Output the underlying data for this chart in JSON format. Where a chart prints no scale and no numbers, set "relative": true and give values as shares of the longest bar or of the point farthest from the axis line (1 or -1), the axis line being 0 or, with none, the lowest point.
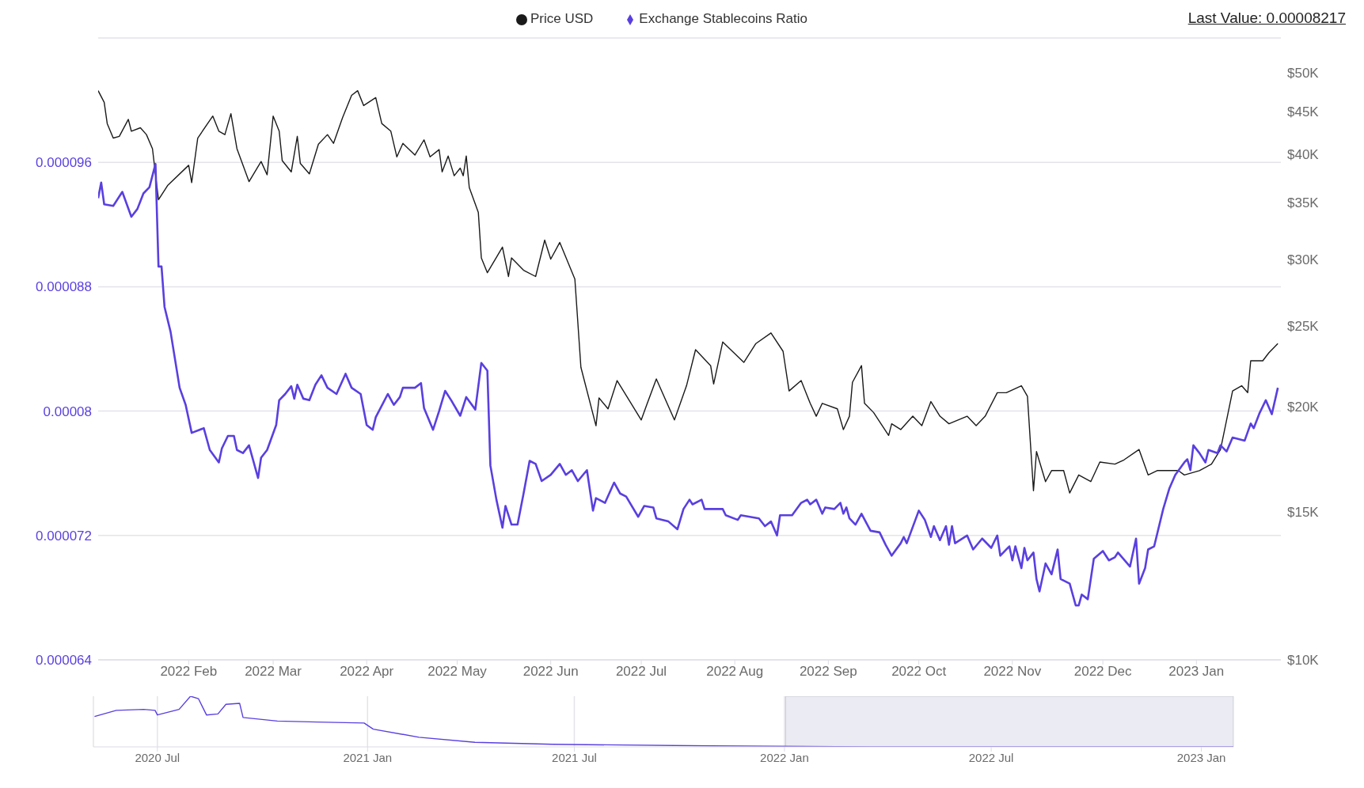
{
  "chart_data": [
    {
      "type": "line",
      "legend": "top",
      "grid": "y",
      "log": "y2",
      "annotations": [
        "Last Value: 0.00008217"
      ],
      "xlim": [
        "2022-01-02",
        "2023-01-29"
      ],
      "xticks": [
        {
          "value": "2022-02-01",
          "label": "2022 Feb"
        },
        {
          "value": "2022-03-01",
          "label": "2022 Mar"
        },
        {
          "value": "2022-04-01",
          "label": "2022 Apr"
        },
        {
          "value": "2022-05-01",
          "label": "2022 May"
        },
        {
          "value": "2022-06-01",
          "label": "2022 Jun"
        },
        {
          "value": "2022-07-01",
          "label": "2022 Jul"
        },
        {
          "value": "2022-08-01",
          "label": "2022 Aug"
        },
        {
          "value": "2022-09-01",
          "label": "2022 Sep"
        },
        {
          "value": "2022-10-01",
          "label": "2022 Oct"
        },
        {
          "value": "2022-11-01",
          "label": "2022 Nov"
        },
        {
          "value": "2022-12-01",
          "label": "2022 Dec"
        },
        {
          "value": "2023-01-01",
          "label": "2023 Jan"
        }
      ],
      "ylim": [
        6.4e-05,
        0.000104
      ],
      "yticks": [
        {
          "value": 6.4e-05,
          "label": "0.000064"
        },
        {
          "value": 7.2e-05,
          "label": "0.000072"
        },
        {
          "value": 8e-05,
          "label": "0.00008"
        },
        {
          "value": 8.8e-05,
          "label": "0.000088"
        },
        {
          "value": 9.6e-05,
          "label": "0.000096"
        }
      ],
      "y2lim": [
        10000,
        55000
      ],
      "y2ticks": [
        {
          "value": 10000,
          "label": "$10K"
        },
        {
          "value": 15000,
          "label": "$15K"
        },
        {
          "value": 20000,
          "label": "$20K"
        },
        {
          "value": 25000,
          "label": "$25K"
        },
        {
          "value": 30000,
          "label": "$30K"
        },
        {
          "value": 35000,
          "label": "$35K"
        },
        {
          "value": 40000,
          "label": "$40K"
        },
        {
          "value": 45000,
          "label": "$45K"
        },
        {
          "value": 50000,
          "label": "$50K"
        }
      ],
      "series": [
        {
          "name": "Price USD",
          "color": "#1a1a1a",
          "axis": "y2",
          "x": [
            "2022-01-02",
            "2022-01-04",
            "2022-01-05",
            "2022-01-07",
            "2022-01-09",
            "2022-01-12",
            "2022-01-13",
            "2022-01-16",
            "2022-01-18",
            "2022-01-20",
            "2022-01-22",
            "2022-01-25",
            "2022-02-01",
            "2022-02-02",
            "2022-02-04",
            "2022-02-09",
            "2022-02-11",
            "2022-02-13",
            "2022-02-15",
            "2022-02-17",
            "2022-02-21",
            "2022-02-25",
            "2022-02-27",
            "2022-03-01",
            "2022-03-03",
            "2022-03-04",
            "2022-03-07",
            "2022-03-09",
            "2022-03-10",
            "2022-03-13",
            "2022-03-16",
            "2022-03-19",
            "2022-03-21",
            "2022-03-24",
            "2022-03-27",
            "2022-03-29",
            "2022-03-31",
            "2022-04-04",
            "2022-04-06",
            "2022-04-09",
            "2022-04-11",
            "2022-04-13",
            "2022-04-17",
            "2022-04-20",
            "2022-04-22",
            "2022-04-25",
            "2022-04-26",
            "2022-04-28",
            "2022-04-30",
            "2022-05-02",
            "2022-05-03",
            "2022-05-04",
            "2022-05-05",
            "2022-05-08",
            "2022-05-09",
            "2022-05-11",
            "2022-05-16",
            "2022-05-18",
            "2022-05-19",
            "2022-05-23",
            "2022-05-27",
            "2022-05-30",
            "2022-06-01",
            "2022-06-04",
            "2022-06-09",
            "2022-06-11",
            "2022-06-16",
            "2022-06-17",
            "2022-06-20",
            "2022-06-23",
            "2022-07-01",
            "2022-07-03",
            "2022-07-06",
            "2022-07-12",
            "2022-07-16",
            "2022-07-19",
            "2022-07-24",
            "2022-07-25",
            "2022-07-28",
            "2022-08-04",
            "2022-08-08",
            "2022-08-13",
            "2022-08-17",
            "2022-08-19",
            "2022-08-23",
            "2022-08-26",
            "2022-08-28",
            "2022-08-30",
            "2022-09-04",
            "2022-09-06",
            "2022-09-08",
            "2022-09-09",
            "2022-09-12",
            "2022-09-13",
            "2022-09-16",
            "2022-09-21",
            "2022-09-22",
            "2022-09-25",
            "2022-09-29",
            "2022-10-02",
            "2022-10-05",
            "2022-10-08",
            "2022-10-11",
            "2022-10-17",
            "2022-10-20",
            "2022-10-23",
            "2022-10-27",
            "2022-10-30",
            "2022-11-04",
            "2022-11-06",
            "2022-11-08",
            "2022-11-09",
            "2022-11-12",
            "2022-11-14",
            "2022-11-18",
            "2022-11-20",
            "2022-11-23",
            "2022-11-27",
            "2022-11-30",
            "2022-12-05",
            "2022-12-08",
            "2022-12-13",
            "2022-12-16",
            "2022-12-19",
            "2022-12-26",
            "2022-12-28",
            "2023-01-02",
            "2023-01-06",
            "2023-01-09",
            "2023-01-13",
            "2023-01-16",
            "2023-01-18",
            "2023-01-19",
            "2023-01-23",
            "2023-01-25",
            "2023-01-28"
          ],
          "values": [
            47600,
            46100,
            43500,
            41800,
            42000,
            44000,
            42600,
            43000,
            42200,
            40600,
            35300,
            36700,
            38800,
            37000,
            41800,
            44400,
            42600,
            42200,
            44700,
            40600,
            37100,
            39200,
            37800,
            44400,
            42600,
            39300,
            38100,
            42000,
            39000,
            37900,
            41100,
            42200,
            41200,
            44200,
            47000,
            47600,
            45700,
            46700,
            43500,
            42600,
            39700,
            41200,
            39900,
            41600,
            39700,
            40500,
            38100,
            39800,
            37700,
            38500,
            37700,
            39800,
            36500,
            34100,
            30100,
            28900,
            31000,
            28600,
            30100,
            29100,
            28600,
            31600,
            30000,
            31400,
            28400,
            22300,
            19000,
            20500,
            19900,
            21500,
            19300,
            20200,
            21600,
            19300,
            21200,
            23400,
            22400,
            21300,
            23900,
            22600,
            23800,
            24500,
            23300,
            20900,
            21500,
            20200,
            19500,
            20200,
            19900,
            18800,
            19500,
            21400,
            22400,
            20200,
            19700,
            18500,
            19100,
            18800,
            19500,
            19000,
            20300,
            19500,
            19100,
            19500,
            19000,
            19500,
            20800,
            20800,
            21200,
            20600,
            15900,
            17700,
            16300,
            16800,
            16800,
            15800,
            16600,
            16300,
            17200,
            17100,
            17300,
            17800,
            16600,
            16800,
            16800,
            16600,
            16800,
            17100,
            17800,
            20900,
            21200,
            20800,
            22700,
            22700,
            23200,
            23800
          ]
        },
        {
          "name": "Exchange Stablecoins Ratio",
          "color": "#5a3fe0",
          "axis": "y",
          "x": [
            "2022-01-02",
            "2022-01-03",
            "2022-01-04",
            "2022-01-07",
            "2022-01-10",
            "2022-01-13",
            "2022-01-15",
            "2022-01-17",
            "2022-01-19",
            "2022-01-21",
            "2022-01-22",
            "2022-01-23",
            "2022-01-24",
            "2022-01-26",
            "2022-01-29",
            "2022-01-31",
            "2022-02-02",
            "2022-02-06",
            "2022-02-08",
            "2022-02-11",
            "2022-02-12",
            "2022-02-14",
            "2022-02-16",
            "2022-02-17",
            "2022-02-19",
            "2022-02-21",
            "2022-02-24",
            "2022-02-25",
            "2022-02-27",
            "2022-03-02",
            "2022-03-03",
            "2022-03-05",
            "2022-03-07",
            "2022-03-08",
            "2022-03-09",
            "2022-03-11",
            "2022-03-13",
            "2022-03-15",
            "2022-03-17",
            "2022-03-19",
            "2022-03-22",
            "2022-03-25",
            "2022-03-27",
            "2022-03-30",
            "2022-04-01",
            "2022-04-03",
            "2022-04-04",
            "2022-04-08",
            "2022-04-10",
            "2022-04-12",
            "2022-04-13",
            "2022-04-17",
            "2022-04-19",
            "2022-04-20",
            "2022-04-23",
            "2022-04-25",
            "2022-04-27",
            "2022-04-29",
            "2022-05-02",
            "2022-05-04",
            "2022-05-07",
            "2022-05-09",
            "2022-05-11",
            "2022-05-12",
            "2022-05-14",
            "2022-05-16",
            "2022-05-17",
            "2022-05-19",
            "2022-05-21",
            "2022-05-23",
            "2022-05-25",
            "2022-05-27",
            "2022-05-29",
            "2022-06-01",
            "2022-06-04",
            "2022-06-06",
            "2022-06-08",
            "2022-06-10",
            "2022-06-13",
            "2022-06-15",
            "2022-06-16",
            "2022-06-19",
            "2022-06-22",
            "2022-06-24",
            "2022-06-26",
            "2022-06-30",
            "2022-07-02",
            "2022-07-05",
            "2022-07-06",
            "2022-07-10",
            "2022-07-13",
            "2022-07-15",
            "2022-07-17",
            "2022-07-18",
            "2022-07-21",
            "2022-07-22",
            "2022-07-28",
            "2022-07-29",
            "2022-08-02",
            "2022-08-03",
            "2022-08-09",
            "2022-08-11",
            "2022-08-13",
            "2022-08-15",
            "2022-08-16",
            "2022-08-20",
            "2022-08-23",
            "2022-08-25",
            "2022-08-26",
            "2022-08-28",
            "2022-08-30",
            "2022-08-31",
            "2022-09-03",
            "2022-09-05",
            "2022-09-06",
            "2022-09-07",
            "2022-09-08",
            "2022-09-10",
            "2022-09-12",
            "2022-09-15",
            "2022-09-18",
            "2022-09-20",
            "2022-09-22",
            "2022-09-25",
            "2022-09-26",
            "2022-09-27",
            "2022-10-01",
            "2022-10-03",
            "2022-10-05",
            "2022-10-06",
            "2022-10-08",
            "2022-10-10",
            "2022-10-11",
            "2022-10-12",
            "2022-10-13",
            "2022-10-17",
            "2022-10-19",
            "2022-10-22",
            "2022-10-25",
            "2022-10-27",
            "2022-10-28",
            "2022-10-31",
            "2022-11-01",
            "2022-11-02",
            "2022-11-04",
            "2022-11-05",
            "2022-11-06",
            "2022-11-08",
            "2022-11-09",
            "2022-11-10",
            "2022-11-12",
            "2022-11-14",
            "2022-11-16",
            "2022-11-17",
            "2022-11-20",
            "2022-11-22",
            "2022-11-23",
            "2022-11-24",
            "2022-11-26",
            "2022-11-28",
            "2022-12-01",
            "2022-12-03",
            "2022-12-05",
            "2022-12-06",
            "2022-12-10",
            "2022-12-12",
            "2022-12-13",
            "2022-12-15",
            "2022-12-16",
            "2022-12-18",
            "2022-12-21",
            "2022-12-23",
            "2022-12-25",
            "2022-12-28",
            "2022-12-29",
            "2022-12-30",
            "2022-12-31",
            "2023-01-02",
            "2023-01-04",
            "2023-01-05",
            "2023-01-08",
            "2023-01-09",
            "2023-01-11",
            "2023-01-13",
            "2023-01-17",
            "2023-01-19",
            "2023-01-20",
            "2023-01-22",
            "2023-01-24",
            "2023-01-26",
            "2023-01-28"
          ],
          "values": [
            9.37e-05,
            9.47e-05,
            9.33e-05,
            9.32e-05,
            9.41e-05,
            9.25e-05,
            9.3e-05,
            9.4e-05,
            9.44e-05,
            9.59e-05,
            8.93e-05,
            8.93e-05,
            8.67e-05,
            8.51e-05,
            8.15e-05,
            8.04e-05,
            7.86e-05,
            7.89e-05,
            7.75e-05,
            7.67e-05,
            7.76e-05,
            7.84e-05,
            7.84e-05,
            7.75e-05,
            7.73e-05,
            7.78e-05,
            7.57e-05,
            7.7e-05,
            7.75e-05,
            7.91e-05,
            8.07e-05,
            8.11e-05,
            8.16e-05,
            8.08e-05,
            8.17e-05,
            8.08e-05,
            8.07e-05,
            8.17e-05,
            8.23e-05,
            8.15e-05,
            8.11e-05,
            8.24e-05,
            8.15e-05,
            8.11e-05,
            7.91e-05,
            7.88e-05,
            7.96e-05,
            8.11e-05,
            8.04e-05,
            8.09e-05,
            8.15e-05,
            8.15e-05,
            8.18e-05,
            8.02e-05,
            7.88e-05,
            8e-05,
            8.13e-05,
            8.07e-05,
            7.97e-05,
            8.09e-05,
            8.01e-05,
            8.31e-05,
            8.26e-05,
            7.65e-05,
            7.43e-05,
            7.25e-05,
            7.39e-05,
            7.27e-05,
            7.27e-05,
            7.47e-05,
            7.68e-05,
            7.66e-05,
            7.55e-05,
            7.59e-05,
            7.66e-05,
            7.59e-05,
            7.62e-05,
            7.55e-05,
            7.62e-05,
            7.36e-05,
            7.44e-05,
            7.41e-05,
            7.54e-05,
            7.47e-05,
            7.45e-05,
            7.32e-05,
            7.39e-05,
            7.38e-05,
            7.31e-05,
            7.29e-05,
            7.24e-05,
            7.37e-05,
            7.43e-05,
            7.4e-05,
            7.43e-05,
            7.37e-05,
            7.37e-05,
            7.33e-05,
            7.3e-05,
            7.33e-05,
            7.31e-05,
            7.26e-05,
            7.29e-05,
            7.2e-05,
            7.33e-05,
            7.33e-05,
            7.41e-05,
            7.43e-05,
            7.4e-05,
            7.43e-05,
            7.34e-05,
            7.38e-05,
            7.37e-05,
            7.41e-05,
            7.34e-05,
            7.38e-05,
            7.31e-05,
            7.27e-05,
            7.34e-05,
            7.23e-05,
            7.22e-05,
            7.14e-05,
            7.07e-05,
            7.15e-05,
            7.19e-05,
            7.15e-05,
            7.36e-05,
            7.3e-05,
            7.19e-05,
            7.26e-05,
            7.17e-05,
            7.26e-05,
            7.14e-05,
            7.26e-05,
            7.15e-05,
            7.2e-05,
            7.11e-05,
            7.18e-05,
            7.12e-05,
            7.2e-05,
            7.07e-05,
            7.13e-05,
            7.04e-05,
            7.13e-05,
            6.99e-05,
            7.12e-05,
            7.04e-05,
            7.09e-05,
            6.92e-05,
            6.84e-05,
            7.02e-05,
            6.95e-05,
            7.11e-05,
            6.92e-05,
            6.89e-05,
            6.75e-05,
            6.75e-05,
            6.82e-05,
            6.79e-05,
            7.05e-05,
            7.1e-05,
            7.04e-05,
            7.06e-05,
            7.09e-05,
            7e-05,
            7.18e-05,
            6.89e-05,
            6.99e-05,
            7.11e-05,
            7.13e-05,
            7.37e-05,
            7.5e-05,
            7.59e-05,
            7.67e-05,
            7.69e-05,
            7.62e-05,
            7.78e-05,
            7.73e-05,
            7.67e-05,
            7.75e-05,
            7.73e-05,
            7.78e-05,
            7.74e-05,
            7.83e-05,
            7.81e-05,
            7.92e-05,
            7.89e-05,
            7.99e-05,
            8.07e-05,
            7.98e-05,
            8.15e-05
          ]
        }
      ]
    },
    {
      "type": "line",
      "relative": true,
      "grid": "x",
      "legend": false,
      "xlim": [
        "2020-05-06",
        "2023-01-29"
      ],
      "xticks": [
        {
          "value": "2020-07-01",
          "label": "2020 Jul"
        },
        {
          "value": "2021-01-01",
          "label": "2021 Jan"
        },
        {
          "value": "2021-07-01",
          "label": "2021 Jul"
        },
        {
          "value": "2022-01-01",
          "label": "2022 Jan"
        },
        {
          "value": "2022-07-01",
          "label": "2022 Jul"
        },
        {
          "value": "2023-01-01",
          "label": "2023 Jan"
        }
      ],
      "bands": [
        {
          "axis": "x",
          "from": "2022-01-02",
          "to": "2023-01-29",
          "color": "#ebebf3"
        }
      ],
      "series": [
        {
          "color": "#5a3fe0",
          "x": [
            "2020-05-07",
            "2020-05-26",
            "2020-06-19",
            "2020-06-29",
            "2020-07-01",
            "2020-07-20",
            "2020-07-30",
            "2020-08-06",
            "2020-08-13",
            "2020-08-23",
            "2020-08-30",
            "2020-09-11",
            "2020-09-14",
            "2020-10-14",
            "2020-11-18",
            "2020-12-29",
            "2021-01-06",
            "2021-02-15",
            "2021-04-05",
            "2021-06-12",
            "2021-10-28",
            "2022-03-15",
            "2023-01-29"
          ],
          "values": [
            0.6,
            0.72,
            0.74,
            0.72,
            0.63,
            0.74,
            1,
            0.95,
            0.63,
            0.65,
            0.84,
            0.86,
            0.58,
            0.51,
            0.49,
            0.47,
            0.35,
            0.19,
            0.09,
            0.05,
            0.02,
            0,
            0
          ]
        }
      ]
    }
  ]
}
